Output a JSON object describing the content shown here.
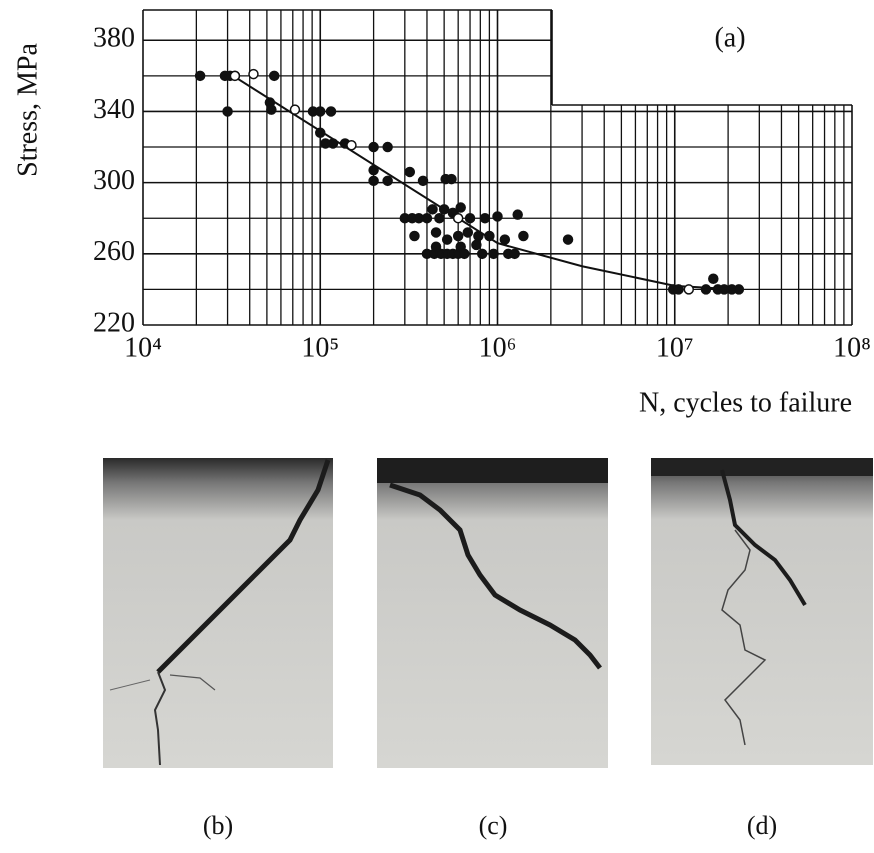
{
  "chart_data": {
    "type": "scatter",
    "annotation": "(a)",
    "x_label": "N, cycles to failure",
    "y_label": "Stress, MPa",
    "xscale": "log",
    "grid": true,
    "color": "#111111",
    "xlim": [
      10000,
      100000000
    ],
    "xticks": [
      {
        "value": 10000,
        "label": "10⁴"
      },
      {
        "value": 100000,
        "label": "10⁵"
      },
      {
        "value": 1000000,
        "label": "10⁶"
      },
      {
        "value": 10000000,
        "label": "10⁷"
      },
      {
        "value": 100000000,
        "label": "10⁸"
      }
    ],
    "ylim": [
      220,
      397
    ],
    "yticks": [
      220,
      260,
      300,
      340,
      380
    ],
    "series": [
      {
        "marker": "filled",
        "x": [
          21000,
          29000,
          31000,
          33000,
          55000,
          30000,
          52000,
          53000,
          91000,
          100000,
          115000,
          100000,
          107000,
          118000,
          138000,
          200000,
          240000,
          200000,
          200000,
          240000,
          320000,
          380000,
          510000,
          550000,
          300000,
          330000,
          360000,
          400000,
          430000,
          470000,
          500000,
          560000,
          620000,
          700000,
          850000,
          1000000,
          1300000,
          340000,
          450000,
          520000,
          600000,
          680000,
          780000,
          900000,
          1100000,
          1400000,
          400000,
          440000,
          480000,
          520000,
          560000,
          600000,
          650000,
          820000,
          950000,
          1150000,
          1250000,
          450000,
          620000,
          760000,
          2500000,
          9800000,
          10500000,
          15000000,
          16500000,
          17500000,
          19000000,
          21000000,
          23000000
        ],
        "values": [
          360,
          360,
          360,
          360,
          360,
          340,
          345,
          341,
          340,
          340,
          340,
          328,
          322,
          322,
          322,
          320,
          320,
          307,
          301,
          301,
          306,
          301,
          302,
          302,
          280,
          280,
          280,
          280,
          285,
          280,
          285,
          283,
          286,
          280,
          280,
          281,
          282,
          270,
          272,
          268,
          270,
          272,
          270,
          270,
          268,
          270,
          260,
          260,
          260,
          260,
          260,
          260,
          260,
          260,
          260,
          260,
          260,
          264,
          264,
          265,
          268,
          240,
          240,
          240,
          246,
          240,
          240,
          240,
          240
        ]
      },
      {
        "marker": "open",
        "x": [
          33000,
          42000,
          72000,
          150000,
          600000,
          12000000
        ],
        "values": [
          360,
          361,
          341,
          321,
          280,
          240
        ]
      },
      {
        "marker": "line",
        "x": [
          30000,
          1000000,
          3000000,
          10000000,
          22000000
        ],
        "values": [
          362,
          266,
          253,
          242,
          240
        ]
      }
    ]
  },
  "panels": [
    "(b)",
    "(c)",
    "(d)"
  ]
}
